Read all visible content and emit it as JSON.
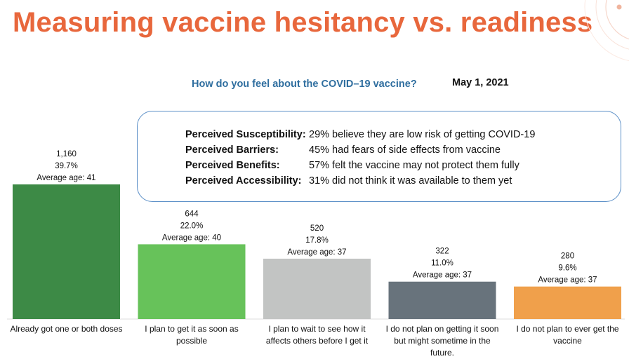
{
  "header": {
    "title": "Measuring vaccine hesitancy vs. readiness"
  },
  "chart_data": {
    "type": "bar",
    "title": "How do you feel about the COVID–19 vaccine?",
    "date": "May 1, 2021",
    "categories": [
      "Already got one or both doses",
      "I plan to get it as soon as possible",
      "I plan to wait to see how it affects others before I get it",
      "I do not plan on getting it soon but might sometime in the future.",
      "I do not plan to ever get the vaccine"
    ],
    "values": [
      1160,
      644,
      520,
      322,
      280
    ],
    "count_labels": [
      "1,160",
      "644",
      "520",
      "322",
      "280"
    ],
    "percent_labels": [
      "39.7%",
      "22.0%",
      "17.8%",
      "11.0%",
      "9.6%"
    ],
    "age_labels": [
      "Average age: 41",
      "Average age: 40",
      "Average age: 37",
      "Average age: 37",
      "Average age: 37"
    ],
    "colors": [
      "#3d8a46",
      "#67c25a",
      "#c2c4c3",
      "#68737c",
      "#f0a04b"
    ],
    "ylim": [
      0,
      1160
    ],
    "xlabel": "",
    "ylabel": ""
  },
  "info_box": {
    "rows": [
      {
        "label": "Perceived Susceptibility:",
        "value": "29% believe they are low risk of getting COVID-19"
      },
      {
        "label": "Perceived Barriers:",
        "value": "45% had fears of side effects from vaccine"
      },
      {
        "label": "Perceived Benefits:",
        "value": "57% felt the vaccine may not protect them fully"
      },
      {
        "label": "Perceived Accessibility:",
        "value": "31% did not think it was available to them yet"
      }
    ]
  },
  "colors": {
    "title": "#e8673c",
    "subtitle": "#2f6e9f",
    "box_border": "#5b8fc7"
  }
}
